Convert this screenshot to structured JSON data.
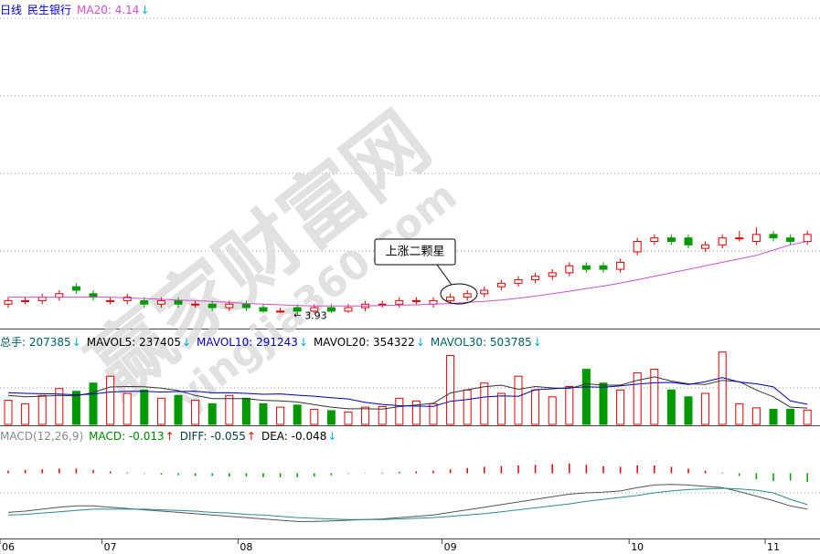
{
  "chart_data": {
    "type": "candlestick",
    "headers": {
      "price": [
        {
          "text": "日线",
          "color": "#0000cc"
        },
        {
          "text": "民生银行",
          "color": "#0000cc"
        },
        {
          "text": "MA20: 4.14",
          "color": "#d050d0",
          "arrow": "↓",
          "arrow_color": "#00b0e0"
        }
      ],
      "volume": [
        {
          "text": "总手: 207385",
          "color": "#006060",
          "arrow": "↓",
          "arrow_color": "#00b0e0"
        },
        {
          "text": "MAVOL5: 237405",
          "color": "#000000",
          "arrow": "↓",
          "arrow_color": "#00b0e0"
        },
        {
          "text": "MAVOL10: 291243",
          "color": "#0000aa",
          "arrow": "↓",
          "arrow_color": "#00b0e0"
        },
        {
          "text": "MAVOL20: 354322",
          "color": "#000000",
          "arrow": "↓",
          "arrow_color": "#00b0e0"
        },
        {
          "text": "MAVOL30: 503785",
          "color": "#006060",
          "arrow": "↓",
          "arrow_color": "#00b0e0"
        }
      ],
      "macd": [
        {
          "text": "MACD(12,26,9)",
          "color": "#888888"
        },
        {
          "text": "MACD: -0.013",
          "color": "#008800",
          "arrow": "↑",
          "arrow_color": "#e00000"
        },
        {
          "text": "DIFF: -0.055",
          "color": "#004040",
          "arrow": "↑",
          "arrow_color": "#e00000"
        },
        {
          "text": "DEA: -0.048",
          "color": "#000000",
          "arrow": "↓",
          "arrow_color": "#00b0e0"
        }
      ]
    },
    "callout": "上涨二颗星",
    "watermark": [
      "赢家财富网",
      "yingjia360.com"
    ],
    "categories": [
      "06",
      null,
      null,
      null,
      null,
      null,
      "07",
      null,
      null,
      null,
      null,
      null,
      null,
      null,
      "08",
      null,
      null,
      null,
      null,
      null,
      null,
      null,
      null,
      null,
      null,
      null,
      "09",
      null,
      null,
      null,
      null,
      null,
      null,
      null,
      null,
      null,
      null,
      "10",
      null,
      null,
      null,
      null,
      null,
      null,
      null,
      "11",
      null,
      null
    ],
    "open": [
      3.96,
      3.97,
      3.97,
      3.98,
      4.01,
      3.99,
      3.97,
      3.97,
      3.97,
      3.96,
      3.97,
      3.96,
      3.96,
      3.95,
      3.96,
      3.95,
      3.94,
      3.95,
      3.94,
      3.95,
      3.94,
      3.95,
      3.96,
      3.96,
      3.97,
      3.96,
      3.97,
      3.98,
      3.99,
      4.01,
      4.02,
      4.03,
      4.04,
      4.05,
      4.07,
      4.07,
      4.06,
      4.11,
      4.14,
      4.15,
      4.15,
      4.12,
      4.13,
      4.15,
      4.14,
      4.16,
      4.15,
      4.14
    ],
    "close": [
      3.97,
      3.97,
      3.98,
      3.99,
      4.0,
      3.98,
      3.97,
      3.98,
      3.96,
      3.97,
      3.96,
      3.96,
      3.95,
      3.96,
      3.95,
      3.94,
      3.94,
      3.94,
      3.95,
      3.94,
      3.95,
      3.96,
      3.96,
      3.97,
      3.97,
      3.97,
      3.98,
      3.99,
      4.0,
      4.02,
      4.03,
      4.04,
      4.05,
      4.07,
      4.06,
      4.06,
      4.08,
      4.14,
      4.15,
      4.14,
      4.13,
      4.13,
      4.15,
      4.15,
      4.16,
      4.15,
      4.14,
      4.16
    ],
    "high": [
      3.98,
      3.98,
      3.99,
      4.0,
      4.02,
      4.0,
      3.98,
      3.99,
      3.98,
      3.98,
      3.98,
      3.97,
      3.97,
      3.97,
      3.97,
      3.96,
      3.95,
      3.96,
      3.96,
      3.96,
      3.96,
      3.97,
      3.97,
      3.98,
      3.98,
      3.98,
      3.99,
      4.0,
      4.01,
      4.03,
      4.04,
      4.05,
      4.06,
      4.08,
      4.08,
      4.08,
      4.09,
      4.15,
      4.16,
      4.16,
      4.16,
      4.14,
      4.16,
      4.17,
      4.18,
      4.17,
      4.16,
      4.17
    ],
    "low": [
      3.95,
      3.96,
      3.96,
      3.97,
      3.99,
      3.97,
      3.96,
      3.96,
      3.95,
      3.95,
      3.95,
      3.95,
      3.94,
      3.94,
      3.94,
      3.935,
      3.935,
      3.93,
      3.935,
      3.935,
      3.935,
      3.94,
      3.95,
      3.95,
      3.96,
      3.95,
      3.96,
      3.97,
      3.98,
      4.0,
      4.01,
      4.02,
      4.03,
      4.04,
      4.05,
      4.05,
      4.05,
      4.1,
      4.13,
      4.13,
      4.12,
      4.11,
      4.12,
      4.14,
      4.13,
      4.14,
      4.13,
      4.13
    ],
    "ma20": [
      3.98,
      3.98,
      3.98,
      3.98,
      3.98,
      3.98,
      3.98,
      3.978,
      3.976,
      3.974,
      3.972,
      3.97,
      3.968,
      3.965,
      3.962,
      3.96,
      3.958,
      3.956,
      3.955,
      3.955,
      3.955,
      3.955,
      3.956,
      3.957,
      3.958,
      3.96,
      3.962,
      3.965,
      3.968,
      3.972,
      3.977,
      3.983,
      3.99,
      3.997,
      4.005,
      4.012,
      4.02,
      4.03,
      4.04,
      4.05,
      4.06,
      4.07,
      4.08,
      4.09,
      4.1,
      4.115,
      4.13,
      4.14
    ],
    "volume": [
      350000,
      300000,
      420000,
      520000,
      480000,
      600000,
      700000,
      450000,
      500000,
      380000,
      420000,
      350000,
      300000,
      420000,
      380000,
      300000,
      250000,
      280000,
      220000,
      200000,
      180000,
      250000,
      260000,
      380000,
      340000,
      300000,
      1000000,
      500000,
      600000,
      450000,
      700000,
      500000,
      400000,
      550000,
      800000,
      600000,
      500000,
      750000,
      800000,
      500000,
      400000,
      450000,
      1050000,
      300000,
      240000,
      220000,
      220000,
      207385
    ],
    "mavol5": [
      420000,
      400000,
      410000,
      420000,
      414000,
      464000,
      544000,
      550000,
      546000,
      526000,
      490000,
      420000,
      374000,
      374000,
      374000,
      350000,
      340000,
      326000,
      286000,
      250000,
      226000,
      226000,
      222000,
      258000,
      282000,
      306000,
      456000,
      504000,
      548000,
      570000,
      510000,
      550000,
      530000,
      520000,
      590000,
      570000,
      570000,
      640000,
      690000,
      630000,
      590000,
      580000,
      640000,
      620000,
      500000,
      400000,
      250000,
      237405
    ],
    "mavol10": [
      460000,
      450000,
      445000,
      440000,
      430000,
      440000,
      470000,
      480000,
      480000,
      470000,
      477000,
      482000,
      459000,
      460000,
      450000,
      438000,
      442000,
      424000,
      410000,
      387000,
      370000,
      320000,
      290000,
      272000,
      265000,
      263000,
      335000,
      360000,
      398000,
      414000,
      408000,
      503000,
      517000,
      534000,
      545000,
      540000,
      560000,
      585000,
      605000,
      610000,
      580000,
      620000,
      680000,
      615000,
      590000,
      545000,
      340000,
      291243
    ],
    "macd": [
      0.004,
      0.005,
      0.006,
      0.007,
      0.007,
      0.005,
      0.003,
      0.001,
      -0.001,
      -0.002,
      -0.003,
      -0.004,
      -0.004,
      -0.005,
      -0.005,
      -0.006,
      -0.006,
      -0.006,
      -0.005,
      -0.003,
      -0.001,
      0.0005,
      0.001,
      0.002,
      0.003,
      0.004,
      0.006,
      0.008,
      0.01,
      0.011,
      0.012,
      0.013,
      0.014,
      0.015,
      0.013,
      0.011,
      0.01,
      0.012,
      0.012,
      0.01,
      0.007,
      0.004,
      0.001,
      -0.004,
      -0.009,
      -0.012,
      -0.011,
      -0.013
    ],
    "diff": [
      -0.06,
      -0.058,
      -0.055,
      -0.052,
      -0.05,
      -0.05,
      -0.052,
      -0.054,
      -0.056,
      -0.058,
      -0.06,
      -0.062,
      -0.064,
      -0.066,
      -0.068,
      -0.07,
      -0.072,
      -0.074,
      -0.074,
      -0.073,
      -0.072,
      -0.071,
      -0.07,
      -0.068,
      -0.066,
      -0.064,
      -0.06,
      -0.056,
      -0.052,
      -0.048,
      -0.044,
      -0.04,
      -0.036,
      -0.032,
      -0.03,
      -0.029,
      -0.027,
      -0.022,
      -0.018,
      -0.017,
      -0.018,
      -0.02,
      -0.022,
      -0.028,
      -0.035,
      -0.042,
      -0.05,
      -0.055
    ],
    "dea": [
      -0.064,
      -0.063,
      -0.061,
      -0.059,
      -0.057,
      -0.055,
      -0.055,
      -0.055,
      -0.055,
      -0.056,
      -0.057,
      -0.058,
      -0.06,
      -0.061,
      -0.063,
      -0.064,
      -0.066,
      -0.068,
      -0.069,
      -0.07,
      -0.071,
      -0.071,
      -0.071,
      -0.07,
      -0.069,
      -0.068,
      -0.066,
      -0.064,
      -0.062,
      -0.059,
      -0.056,
      -0.053,
      -0.05,
      -0.047,
      -0.043,
      -0.04,
      -0.037,
      -0.034,
      -0.03,
      -0.027,
      -0.025,
      -0.024,
      -0.023,
      -0.024,
      -0.026,
      -0.03,
      -0.04,
      -0.048
    ],
    "ylim": [
      3.89,
      4.78
    ],
    "volume_ylim": [
      0,
      1100000
    ],
    "macd_ylim": [
      -0.1,
      0.04
    ],
    "colors": {
      "up": "#e00000",
      "down": "#009900",
      "ma20": "#d050d0",
      "mavol5": "#333333",
      "mavol10": "#0000aa",
      "diff": "#555555",
      "dea": "#2a8a9a"
    }
  }
}
